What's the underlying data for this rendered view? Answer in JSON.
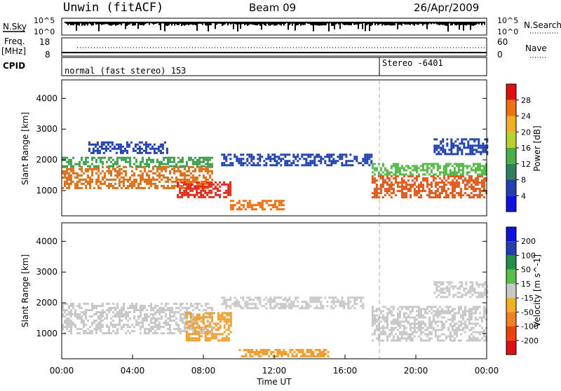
{
  "header": {
    "station": "Unwin (fitACF)",
    "beam": "Beam 09",
    "date": "26/Apr/2009"
  },
  "top_panels": {
    "nsky": {
      "label": "N.Sky",
      "ticks": [
        "10^5",
        "10^0"
      ]
    },
    "nsearch": {
      "label": "N.Search",
      "ticks": [
        "10^5",
        "10^0"
      ]
    },
    "freq": {
      "label": "Freq.",
      "unit": "[MHz]",
      "ticks": [
        "18",
        "8"
      ]
    },
    "nave": {
      "label": "Nave",
      "ticks": [
        "60",
        "0"
      ]
    },
    "cpid": {
      "label": "CPID",
      "segments": [
        "normal (fast stereo) 153",
        "Stereo -6401"
      ],
      "switch_time_h": 18.0
    }
  },
  "chart_data": [
    {
      "type": "heatmap",
      "name": "power",
      "ylabel": "Slant Range [km]",
      "xlabel": "",
      "x_range_h": [
        0,
        24
      ],
      "ylim": [
        180,
        4600
      ],
      "yticks": [
        1000,
        2000,
        3000,
        4000
      ],
      "colorbar": {
        "label": "Power [dB]",
        "ticks": [
          "28",
          "24",
          "20",
          "16",
          "12",
          "8",
          "4"
        ],
        "colors": [
          "#1010e0",
          "#2040b0",
          "#2f7f5f",
          "#48b048",
          "#b8d030",
          "#f0b020",
          "#f07010",
          "#e01010"
        ]
      },
      "bands": [
        {
          "t0": 0.0,
          "t1": 8.5,
          "r0": 1100,
          "r1": 1800,
          "color": "#e07018"
        },
        {
          "t0": 0.0,
          "t1": 8.5,
          "r0": 1800,
          "r1": 2100,
          "color": "#40a050"
        },
        {
          "t0": 1.5,
          "t1": 6.0,
          "r0": 2200,
          "r1": 2600,
          "color": "#2040b0"
        },
        {
          "t0": 6.5,
          "t1": 9.5,
          "r0": 800,
          "r1": 1300,
          "color": "#e02818"
        },
        {
          "t0": 9.5,
          "t1": 12.5,
          "r0": 400,
          "r1": 700,
          "color": "#f07010"
        },
        {
          "t0": 9.0,
          "t1": 17.5,
          "r0": 1800,
          "r1": 2200,
          "color": "#2040b0"
        },
        {
          "t0": 17.5,
          "t1": 24.0,
          "r0": 800,
          "r1": 1500,
          "color": "#e05818"
        },
        {
          "t0": 17.5,
          "t1": 24.0,
          "r0": 1500,
          "r1": 1900,
          "color": "#58b848"
        },
        {
          "t0": 21.0,
          "t1": 24.0,
          "r0": 2200,
          "r1": 2700,
          "color": "#2040b0"
        }
      ]
    },
    {
      "type": "heatmap",
      "name": "velocity",
      "ylabel": "Slant Range [km]",
      "xlabel": "Time UT",
      "x_range_h": [
        0,
        24
      ],
      "ylim": [
        180,
        4600
      ],
      "yticks": [
        1000,
        2000,
        3000,
        4000
      ],
      "xticks": [
        "00:00",
        "04:00",
        "08:00",
        "12:00",
        "16:00",
        "20:00",
        "00:00"
      ],
      "colorbar": {
        "label": "Velocity [m s^-1]",
        "ticks": [
          "200",
          "100",
          "50",
          "15",
          "-15",
          "-50",
          "-100",
          "-200"
        ],
        "colors": [
          "#e01010",
          "#f04010",
          "#f08020",
          "#f0b020",
          "#c8c8c8",
          "#58c048",
          "#209048",
          "#2040b0",
          "#1010e0"
        ]
      },
      "bands": [
        {
          "t0": 0.0,
          "t1": 8.5,
          "r0": 1000,
          "r1": 2000,
          "color": "#c8c8c8"
        },
        {
          "t0": 7.0,
          "t1": 9.5,
          "r0": 800,
          "r1": 1700,
          "color": "#f0a030"
        },
        {
          "t0": 9.0,
          "t1": 17.0,
          "r0": 1800,
          "r1": 2200,
          "color": "#c8c8c8"
        },
        {
          "t0": 10.0,
          "t1": 15.0,
          "r0": 250,
          "r1": 500,
          "color": "#f0a030"
        },
        {
          "t0": 17.5,
          "t1": 24.0,
          "r0": 800,
          "r1": 1900,
          "color": "#c8c8c8"
        },
        {
          "t0": 21.0,
          "t1": 24.0,
          "r0": 2200,
          "r1": 2700,
          "color": "#c8c8c8"
        }
      ]
    }
  ]
}
